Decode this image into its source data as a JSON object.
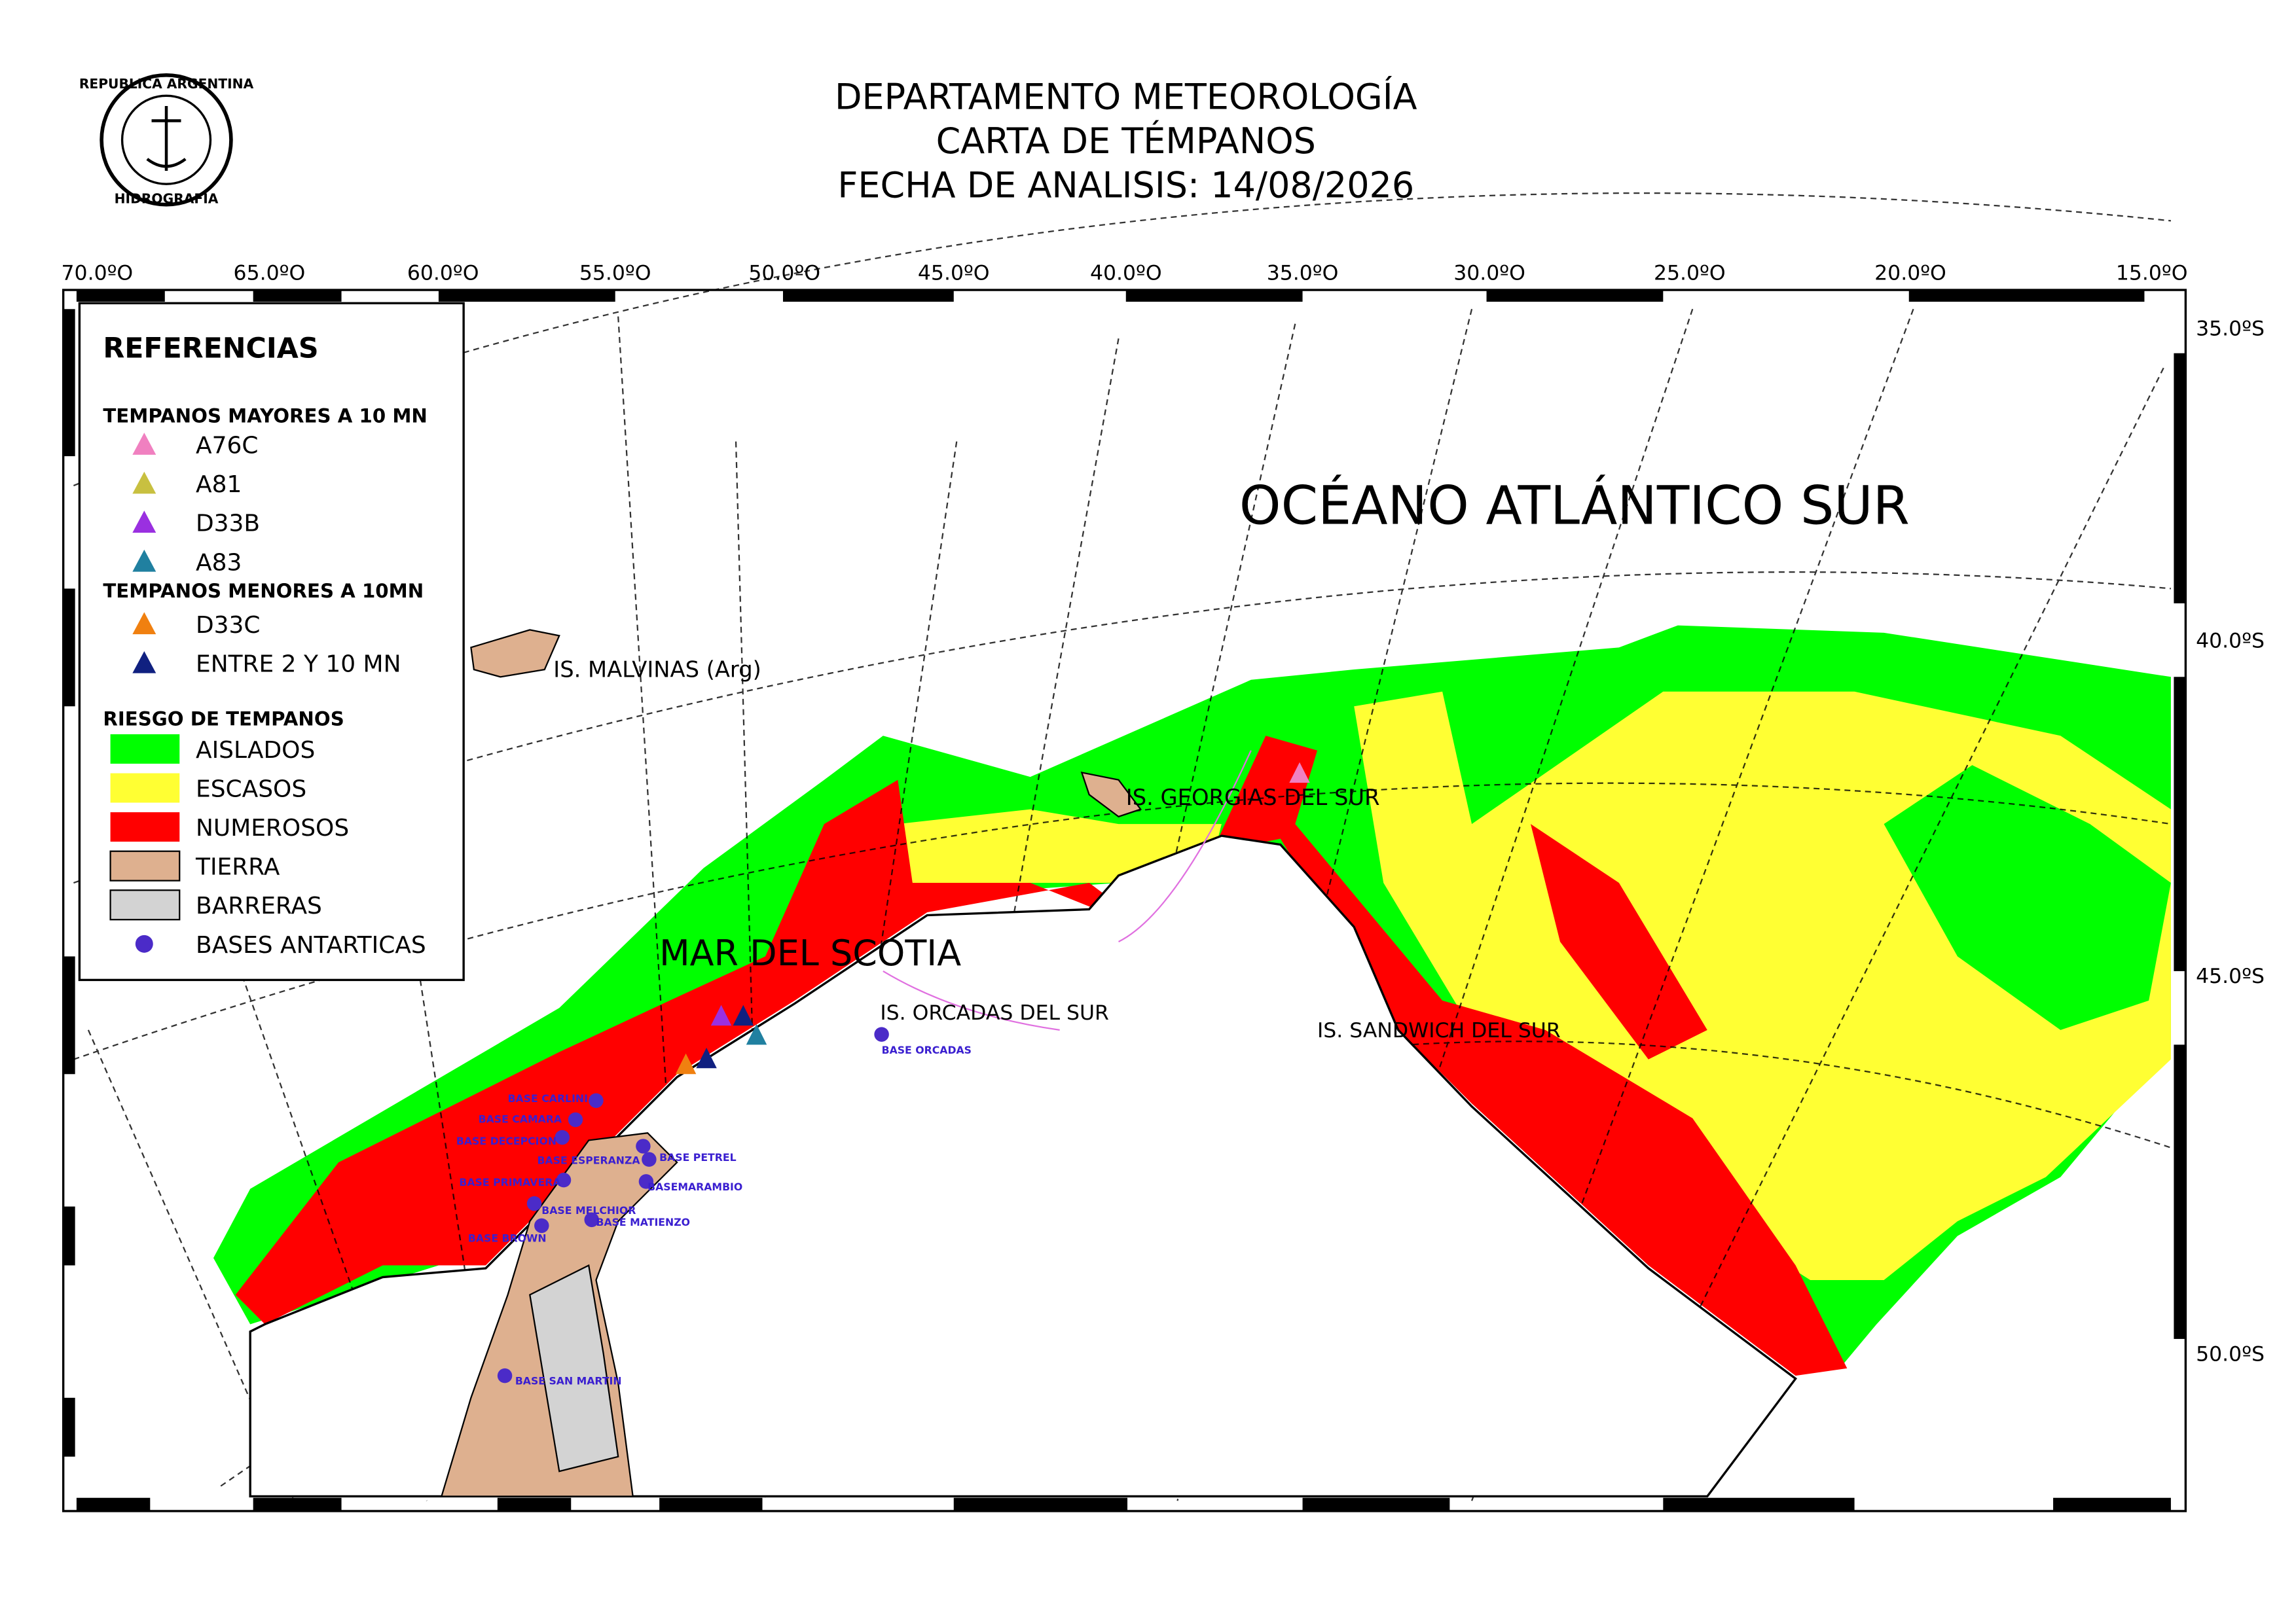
{
  "header": {
    "lines": [
      "DEPARTAMENTO METEOROLOGÍA",
      "CARTA DE TÉMPANOS",
      "FECHA DE ANALISIS: 14/08/2026"
    ],
    "seal_top": "REPUBLICA ARGENTINA",
    "seal_bottom": "HIDROGRAFIA"
  },
  "axes": {
    "lon": [
      "70.0ºO",
      "65.0ºO",
      "60.0ºO",
      "55.0ºO",
      "50.0ºO",
      "45.0ºO",
      "40.0ºO",
      "35.0ºO",
      "30.0ºO",
      "25.0ºO",
      "20.0ºO",
      "15.0ºO"
    ],
    "lat": [
      "35.0ºS",
      "40.0ºS",
      "45.0ºS",
      "50.0ºS"
    ]
  },
  "legend": {
    "title": "REFERENCIAS",
    "major_title": "TEMPANOS MAYORES A 10 MN",
    "major": [
      "A76C",
      "A81",
      "D33B",
      "A83"
    ],
    "minor_title": "TEMPANOS MENORES A 10MN",
    "minor": [
      "D33C",
      "ENTRE 2 Y 10 MN"
    ],
    "risk_title": "RIESGO DE TEMPANOS",
    "risk": [
      "AISLADOS",
      "ESCASOS",
      "NUMEROSOS",
      "TIERRA",
      "BARRERAS",
      "BASES ANTARTICAS"
    ]
  },
  "places": [
    "OCÉANO ATLÁNTICO SUR",
    "IS. MALVINAS (Arg)",
    "IS. GEORGIAS DEL SUR",
    "MAR DEL SCOTIA",
    "IS. ORCADAS DEL SUR",
    "IS. SANDWICH DEL SUR"
  ],
  "bases": [
    "BASE CARLINI",
    "BASE CAMARA",
    "BASE DECEPCION",
    "BASE ESPERANZA",
    "BASE PETREL",
    "BASE PRIMAVERA",
    "BASEMARAMBIO",
    "BASE MELCHIOR",
    "BASE MATIENZO",
    "BASE BROWN",
    "BASE SAN MARTIN",
    "BASE ORCADAS"
  ]
}
